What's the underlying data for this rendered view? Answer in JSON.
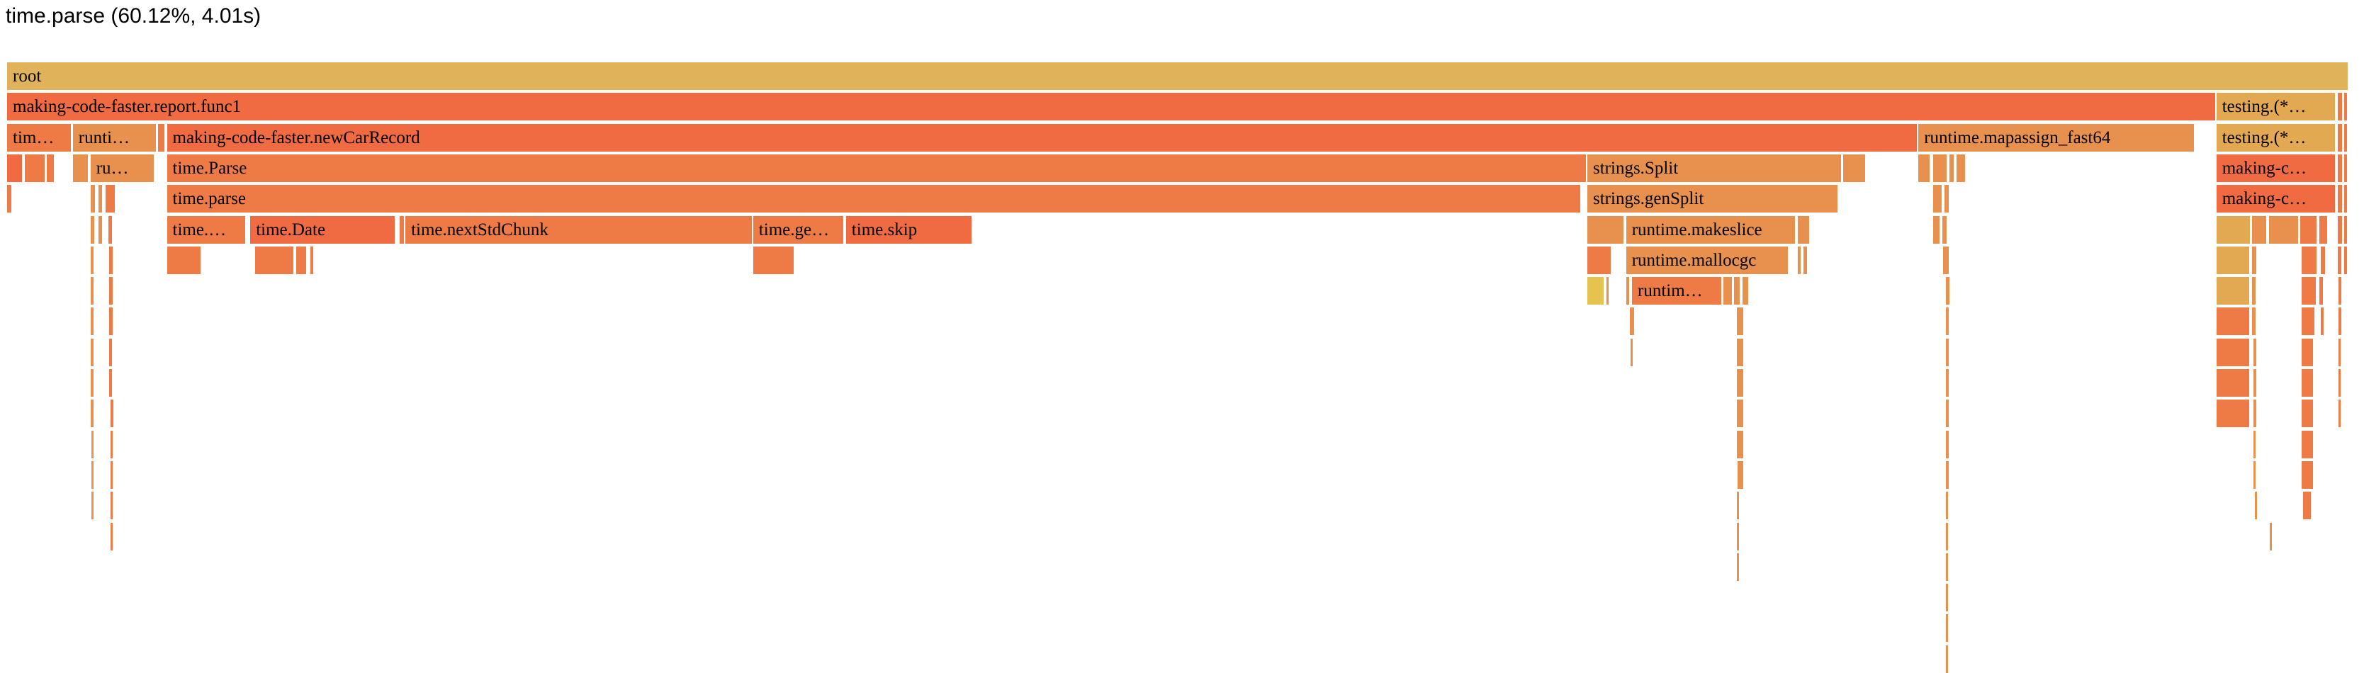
{
  "header": {
    "title": "time.parse (60.12%, 4.01s)"
  },
  "colors": {
    "red": "#f06a42",
    "orange_red": "#ee7b45",
    "orange": "#e8904d",
    "yellow_orange": "#e3a952",
    "gold": "#e0b35a",
    "yellow": "#e6c24e"
  },
  "frames": [
    {
      "row": 0,
      "start": 0.0,
      "width": 99.66,
      "label": "root",
      "color": "#e0b35a"
    },
    {
      "row": 1,
      "start": 0.0,
      "width": 94.02,
      "label": "making-code-faster.report.func1",
      "color": "#f06a42"
    },
    {
      "row": 1,
      "start": 94.02,
      "width": 5.1,
      "label": "testing.(*…",
      "color": "#e3a952"
    },
    {
      "row": 1,
      "start": 99.18,
      "width": 0.25,
      "label": "",
      "color": "#ee7b45"
    },
    {
      "row": 1,
      "start": 99.45,
      "width": 0.18,
      "label": "",
      "color": "#ee7b45"
    },
    {
      "row": 2,
      "start": 0.0,
      "width": 2.78,
      "label": "tim…",
      "color": "#ee7b45"
    },
    {
      "row": 2,
      "start": 2.8,
      "width": 3.6,
      "label": "runti…",
      "color": "#e8904d"
    },
    {
      "row": 2,
      "start": 6.42,
      "width": 0.35,
      "label": "",
      "color": "#ee7b45"
    },
    {
      "row": 2,
      "start": 6.8,
      "width": 74.54,
      "label": "making-code-faster.newCarRecord",
      "color": "#f06a42"
    },
    {
      "row": 2,
      "start": 81.34,
      "width": 11.8,
      "label": "runtime.mapassign_fast64",
      "color": "#e8904d"
    },
    {
      "row": 2,
      "start": 94.02,
      "width": 5.1,
      "label": "testing.(*…",
      "color": "#e3a952"
    },
    {
      "row": 2,
      "start": 99.18,
      "width": 0.25,
      "label": "",
      "color": "#ee7b45"
    },
    {
      "row": 2,
      "start": 99.45,
      "width": 0.18,
      "label": "",
      "color": "#ee7b45"
    },
    {
      "row": 3,
      "start": 0.0,
      "width": 0.7,
      "label": "",
      "color": "#f06a42"
    },
    {
      "row": 3,
      "start": 0.75,
      "width": 0.9,
      "label": "",
      "color": "#ee7b45"
    },
    {
      "row": 3,
      "start": 1.7,
      "width": 0.35,
      "label": "",
      "color": "#ee7b45"
    },
    {
      "row": 3,
      "start": 2.8,
      "width": 0.7,
      "label": "",
      "color": "#e8904d"
    },
    {
      "row": 3,
      "start": 3.55,
      "width": 2.75,
      "label": "ru…",
      "color": "#e8904d"
    },
    {
      "row": 3,
      "start": 6.8,
      "width": 60.45,
      "label": "time.Parse",
      "color": "#ee7b45"
    },
    {
      "row": 3,
      "start": 67.25,
      "width": 10.85,
      "label": "strings.Split",
      "color": "#e8904d"
    },
    {
      "row": 3,
      "start": 78.12,
      "width": 1.0,
      "label": "",
      "color": "#e8904d"
    },
    {
      "row": 3,
      "start": 81.34,
      "width": 0.55,
      "label": "",
      "color": "#e8904d"
    },
    {
      "row": 3,
      "start": 81.95,
      "width": 0.65,
      "label": "",
      "color": "#e8904d"
    },
    {
      "row": 3,
      "start": 82.65,
      "width": 0.25,
      "label": "",
      "color": "#e8904d"
    },
    {
      "row": 3,
      "start": 82.95,
      "width": 0.45,
      "label": "",
      "color": "#e8904d"
    },
    {
      "row": 3,
      "start": 94.02,
      "width": 5.1,
      "label": "making-c…",
      "color": "#f06a42"
    },
    {
      "row": 3,
      "start": 99.18,
      "width": 0.25,
      "label": "",
      "color": "#ee7b45"
    },
    {
      "row": 3,
      "start": 99.45,
      "width": 0.18,
      "label": "",
      "color": "#ee7b45"
    },
    {
      "row": 4,
      "start": 0.0,
      "width": 0.25,
      "label": "",
      "color": "#ee7b45"
    },
    {
      "row": 4,
      "start": 3.55,
      "width": 0.25,
      "label": "",
      "color": "#e8904d"
    },
    {
      "row": 4,
      "start": 3.9,
      "width": 0.2,
      "label": "",
      "color": "#e8904d"
    },
    {
      "row": 4,
      "start": 4.2,
      "width": 0.45,
      "label": "",
      "color": "#ee7b45"
    },
    {
      "row": 4,
      "start": 6.8,
      "width": 60.2,
      "label": "time.parse",
      "color": "#ee7b45"
    },
    {
      "row": 4,
      "start": 67.25,
      "width": 10.7,
      "label": "strings.genSplit",
      "color": "#e8904d"
    },
    {
      "row": 4,
      "start": 81.95,
      "width": 0.45,
      "label": "",
      "color": "#e8904d"
    },
    {
      "row": 4,
      "start": 82.45,
      "width": 0.25,
      "label": "",
      "color": "#e8904d"
    },
    {
      "row": 4,
      "start": 94.02,
      "width": 5.1,
      "label": "making-c…",
      "color": "#f06a42"
    },
    {
      "row": 4,
      "start": 99.18,
      "width": 0.25,
      "label": "",
      "color": "#ee7b45"
    },
    {
      "row": 4,
      "start": 99.45,
      "width": 0.18,
      "label": "",
      "color": "#ee7b45"
    },
    {
      "row": 5,
      "start": 3.55,
      "width": 0.22,
      "label": "",
      "color": "#e8904d"
    },
    {
      "row": 5,
      "start": 3.9,
      "width": 0.2,
      "label": "",
      "color": "#e8904d"
    },
    {
      "row": 5,
      "start": 4.3,
      "width": 0.22,
      "label": "",
      "color": "#ee7b45"
    },
    {
      "row": 5,
      "start": 6.8,
      "width": 3.4,
      "label": "time.…",
      "color": "#ee7b45"
    },
    {
      "row": 5,
      "start": 10.35,
      "width": 6.2,
      "label": "time.Date",
      "color": "#f06a42"
    },
    {
      "row": 5,
      "start": 16.7,
      "width": 0.25,
      "label": "",
      "color": "#ee7b45"
    },
    {
      "row": 5,
      "start": 16.95,
      "width": 14.8,
      "label": "time.nextStdChunk",
      "color": "#ee7b45"
    },
    {
      "row": 5,
      "start": 31.75,
      "width": 3.9,
      "label": "time.ge…",
      "color": "#ee7b45"
    },
    {
      "row": 5,
      "start": 35.7,
      "width": 5.4,
      "label": "time.skip",
      "color": "#f06a42"
    },
    {
      "row": 5,
      "start": 67.25,
      "width": 1.6,
      "label": "",
      "color": "#e8904d"
    },
    {
      "row": 5,
      "start": 68.9,
      "width": 7.25,
      "label": "runtime.makeslice",
      "color": "#e8904d"
    },
    {
      "row": 5,
      "start": 76.2,
      "width": 0.55,
      "label": "",
      "color": "#e8904d"
    },
    {
      "row": 5,
      "start": 81.95,
      "width": 0.35,
      "label": "",
      "color": "#e8904d"
    },
    {
      "row": 5,
      "start": 82.35,
      "width": 0.25,
      "label": "",
      "color": "#e8904d"
    },
    {
      "row": 5,
      "start": 94.02,
      "width": 1.5,
      "label": "",
      "color": "#e3a952"
    },
    {
      "row": 5,
      "start": 95.55,
      "width": 0.65,
      "label": "",
      "color": "#e8904d"
    },
    {
      "row": 5,
      "start": 96.25,
      "width": 1.3,
      "label": "",
      "color": "#e8904d"
    },
    {
      "row": 5,
      "start": 97.6,
      "width": 0.75,
      "label": "",
      "color": "#ee7b45"
    },
    {
      "row": 5,
      "start": 98.4,
      "width": 0.4,
      "label": "",
      "color": "#ee7b45"
    },
    {
      "row": 5,
      "start": 99.18,
      "width": 0.25,
      "label": "",
      "color": "#ee7b45"
    },
    {
      "row": 5,
      "start": 99.45,
      "width": 0.18,
      "label": "",
      "color": "#ee7b45"
    },
    {
      "row": 6,
      "start": 3.55,
      "width": 0.2,
      "label": "",
      "color": "#e8904d"
    },
    {
      "row": 6,
      "start": 4.35,
      "width": 0.2,
      "label": "",
      "color": "#ee7b45"
    },
    {
      "row": 6,
      "start": 6.8,
      "width": 1.5,
      "label": "",
      "color": "#ee7b45"
    },
    {
      "row": 6,
      "start": 10.55,
      "width": 1.7,
      "label": "",
      "color": "#ee7b45"
    },
    {
      "row": 6,
      "start": 12.3,
      "width": 0.5,
      "label": "",
      "color": "#ee7b45"
    },
    {
      "row": 6,
      "start": 12.9,
      "width": 0.18,
      "label": "",
      "color": "#ee7b45"
    },
    {
      "row": 6,
      "start": 31.75,
      "width": 1.8,
      "label": "",
      "color": "#ee7b45"
    },
    {
      "row": 6,
      "start": 67.25,
      "width": 1.05,
      "label": "",
      "color": "#ee7b45"
    },
    {
      "row": 6,
      "start": 68.9,
      "width": 6.95,
      "label": "runtime.mallocgc",
      "color": "#e8904d"
    },
    {
      "row": 6,
      "start": 76.2,
      "width": 0.2,
      "label": "",
      "color": "#e8904d"
    },
    {
      "row": 6,
      "start": 76.45,
      "width": 0.2,
      "label": "",
      "color": "#e8904d"
    },
    {
      "row": 6,
      "start": 82.4,
      "width": 0.3,
      "label": "",
      "color": "#e8904d"
    },
    {
      "row": 6,
      "start": 94.02,
      "width": 1.45,
      "label": "",
      "color": "#e3a952"
    },
    {
      "row": 6,
      "start": 95.55,
      "width": 0.22,
      "label": "",
      "color": "#e8904d"
    },
    {
      "row": 6,
      "start": 97.65,
      "width": 0.7,
      "label": "",
      "color": "#ee7b45"
    },
    {
      "row": 6,
      "start": 98.45,
      "width": 0.25,
      "label": "",
      "color": "#ee7b45"
    },
    {
      "row": 6,
      "start": 99.18,
      "width": 0.22,
      "label": "",
      "color": "#ee7b45"
    },
    {
      "row": 6,
      "start": 99.45,
      "width": 0.18,
      "label": "",
      "color": "#ee7b45"
    },
    {
      "row": 7,
      "start": 3.55,
      "width": 0.2,
      "label": "",
      "color": "#e8904d"
    },
    {
      "row": 7,
      "start": 4.35,
      "width": 0.2,
      "label": "",
      "color": "#ee7b45"
    },
    {
      "row": 7,
      "start": 67.25,
      "width": 0.75,
      "label": "",
      "color": "#e6c24e"
    },
    {
      "row": 7,
      "start": 68.05,
      "width": 0.15,
      "label": "",
      "color": "#e8904d"
    },
    {
      "row": 7,
      "start": 68.9,
      "width": 0.2,
      "label": "",
      "color": "#e8904d"
    },
    {
      "row": 7,
      "start": 69.15,
      "width": 3.85,
      "label": "runtim…",
      "color": "#ee7b45"
    },
    {
      "row": 7,
      "start": 73.05,
      "width": 0.4,
      "label": "",
      "color": "#e8904d"
    },
    {
      "row": 7,
      "start": 73.5,
      "width": 0.3,
      "label": "",
      "color": "#e8904d"
    },
    {
      "row": 7,
      "start": 73.85,
      "width": 0.3,
      "label": "",
      "color": "#e8904d"
    },
    {
      "row": 7,
      "start": 82.5,
      "width": 0.22,
      "label": "",
      "color": "#e8904d"
    },
    {
      "row": 7,
      "start": 94.02,
      "width": 1.45,
      "label": "",
      "color": "#e3a952"
    },
    {
      "row": 7,
      "start": 95.55,
      "width": 0.2,
      "label": "",
      "color": "#e8904d"
    },
    {
      "row": 7,
      "start": 97.65,
      "width": 0.65,
      "label": "",
      "color": "#ee7b45"
    },
    {
      "row": 7,
      "start": 98.4,
      "width": 0.22,
      "label": "",
      "color": "#ee7b45"
    },
    {
      "row": 7,
      "start": 99.2,
      "width": 0.18,
      "label": "",
      "color": "#ee7b45"
    },
    {
      "row": 8,
      "start": 3.55,
      "width": 0.2,
      "label": "",
      "color": "#e8904d"
    },
    {
      "row": 8,
      "start": 4.35,
      "width": 0.2,
      "label": "",
      "color": "#ee7b45"
    },
    {
      "row": 8,
      "start": 69.05,
      "width": 0.25,
      "label": "",
      "color": "#e8904d"
    },
    {
      "row": 8,
      "start": 73.6,
      "width": 0.35,
      "label": "",
      "color": "#e8904d"
    },
    {
      "row": 8,
      "start": 82.5,
      "width": 0.2,
      "label": "",
      "color": "#e8904d"
    },
    {
      "row": 8,
      "start": 94.02,
      "width": 1.45,
      "label": "",
      "color": "#ee7b45"
    },
    {
      "row": 8,
      "start": 95.55,
      "width": 0.2,
      "label": "",
      "color": "#e8904d"
    },
    {
      "row": 8,
      "start": 97.65,
      "width": 0.6,
      "label": "",
      "color": "#ee7b45"
    },
    {
      "row": 8,
      "start": 98.45,
      "width": 0.18,
      "label": "",
      "color": "#ee7b45"
    },
    {
      "row": 8,
      "start": 99.2,
      "width": 0.18,
      "label": "",
      "color": "#ee7b45"
    },
    {
      "row": 9,
      "start": 3.55,
      "width": 0.18,
      "label": "",
      "color": "#e8904d"
    },
    {
      "row": 9,
      "start": 4.35,
      "width": 0.18,
      "label": "",
      "color": "#ee7b45"
    },
    {
      "row": 9,
      "start": 69.1,
      "width": 0.15,
      "label": "",
      "color": "#e8904d"
    },
    {
      "row": 9,
      "start": 73.6,
      "width": 0.35,
      "label": "",
      "color": "#e8904d"
    },
    {
      "row": 9,
      "start": 82.5,
      "width": 0.2,
      "label": "",
      "color": "#e8904d"
    },
    {
      "row": 9,
      "start": 94.02,
      "width": 1.45,
      "label": "",
      "color": "#ee7b45"
    },
    {
      "row": 9,
      "start": 95.6,
      "width": 0.18,
      "label": "",
      "color": "#e8904d"
    },
    {
      "row": 9,
      "start": 97.65,
      "width": 0.55,
      "label": "",
      "color": "#ee7b45"
    },
    {
      "row": 9,
      "start": 99.2,
      "width": 0.15,
      "label": "",
      "color": "#ee7b45"
    },
    {
      "row": 10,
      "start": 3.55,
      "width": 0.18,
      "label": "",
      "color": "#e8904d"
    },
    {
      "row": 10,
      "start": 4.35,
      "width": 0.18,
      "label": "",
      "color": "#ee7b45"
    },
    {
      "row": 10,
      "start": 73.6,
      "width": 0.35,
      "label": "",
      "color": "#e8904d"
    },
    {
      "row": 10,
      "start": 82.5,
      "width": 0.2,
      "label": "",
      "color": "#e8904d"
    },
    {
      "row": 10,
      "start": 94.02,
      "width": 1.45,
      "label": "",
      "color": "#ee7b45"
    },
    {
      "row": 10,
      "start": 95.6,
      "width": 0.18,
      "label": "",
      "color": "#e8904d"
    },
    {
      "row": 10,
      "start": 97.65,
      "width": 0.55,
      "label": "",
      "color": "#ee7b45"
    },
    {
      "row": 10,
      "start": 99.2,
      "width": 0.15,
      "label": "",
      "color": "#ee7b45"
    },
    {
      "row": 11,
      "start": 3.55,
      "width": 0.18,
      "label": "",
      "color": "#e8904d"
    },
    {
      "row": 11,
      "start": 4.4,
      "width": 0.18,
      "label": "",
      "color": "#ee7b45"
    },
    {
      "row": 11,
      "start": 73.6,
      "width": 0.35,
      "label": "",
      "color": "#e8904d"
    },
    {
      "row": 11,
      "start": 82.5,
      "width": 0.18,
      "label": "",
      "color": "#e8904d"
    },
    {
      "row": 11,
      "start": 94.02,
      "width": 1.45,
      "label": "",
      "color": "#ee7b45"
    },
    {
      "row": 11,
      "start": 95.6,
      "width": 0.18,
      "label": "",
      "color": "#e8904d"
    },
    {
      "row": 11,
      "start": 97.65,
      "width": 0.55,
      "label": "",
      "color": "#ee7b45"
    },
    {
      "row": 11,
      "start": 99.2,
      "width": 0.15,
      "label": "",
      "color": "#ee7b45"
    },
    {
      "row": 12,
      "start": 3.6,
      "width": 0.15,
      "label": "",
      "color": "#e8904d"
    },
    {
      "row": 12,
      "start": 4.4,
      "width": 0.15,
      "label": "",
      "color": "#ee7b45"
    },
    {
      "row": 12,
      "start": 73.6,
      "width": 0.35,
      "label": "",
      "color": "#e8904d"
    },
    {
      "row": 12,
      "start": 82.5,
      "width": 0.18,
      "label": "",
      "color": "#e8904d"
    },
    {
      "row": 12,
      "start": 95.6,
      "width": 0.15,
      "label": "",
      "color": "#e8904d"
    },
    {
      "row": 12,
      "start": 97.65,
      "width": 0.55,
      "label": "",
      "color": "#ee7b45"
    },
    {
      "row": 13,
      "start": 3.6,
      "width": 0.15,
      "label": "",
      "color": "#e8904d"
    },
    {
      "row": 13,
      "start": 4.4,
      "width": 0.15,
      "label": "",
      "color": "#ee7b45"
    },
    {
      "row": 13,
      "start": 73.65,
      "width": 0.3,
      "label": "",
      "color": "#e8904d"
    },
    {
      "row": 13,
      "start": 82.5,
      "width": 0.18,
      "label": "",
      "color": "#e8904d"
    },
    {
      "row": 13,
      "start": 95.6,
      "width": 0.15,
      "label": "",
      "color": "#e8904d"
    },
    {
      "row": 13,
      "start": 97.65,
      "width": 0.55,
      "label": "",
      "color": "#ee7b45"
    },
    {
      "row": 14,
      "start": 3.6,
      "width": 0.15,
      "label": "",
      "color": "#e8904d"
    },
    {
      "row": 14,
      "start": 4.4,
      "width": 0.15,
      "label": "",
      "color": "#ee7b45"
    },
    {
      "row": 14,
      "start": 73.6,
      "width": 0.15,
      "label": "",
      "color": "#e8904d"
    },
    {
      "row": 14,
      "start": 82.5,
      "width": 0.15,
      "label": "",
      "color": "#e8904d"
    },
    {
      "row": 14,
      "start": 95.65,
      "width": 0.15,
      "label": "",
      "color": "#e8904d"
    },
    {
      "row": 14,
      "start": 97.7,
      "width": 0.4,
      "label": "",
      "color": "#ee7b45"
    },
    {
      "row": 15,
      "start": 4.4,
      "width": 0.15,
      "label": "",
      "color": "#ee7b45"
    },
    {
      "row": 15,
      "start": 73.6,
      "width": 0.15,
      "label": "",
      "color": "#e8904d"
    },
    {
      "row": 15,
      "start": 82.5,
      "width": 0.15,
      "label": "",
      "color": "#e8904d"
    },
    {
      "row": 15,
      "start": 96.3,
      "width": 0.15,
      "label": "",
      "color": "#e8904d"
    },
    {
      "row": 16,
      "start": 73.6,
      "width": 0.15,
      "label": "",
      "color": "#e8904d"
    },
    {
      "row": 16,
      "start": 82.5,
      "width": 0.15,
      "label": "",
      "color": "#e8904d"
    },
    {
      "row": 17,
      "start": 82.5,
      "width": 0.15,
      "label": "",
      "color": "#e8904d"
    },
    {
      "row": 18,
      "start": 82.5,
      "width": 0.15,
      "label": "",
      "color": "#e8904d"
    },
    {
      "row": 19,
      "start": 82.5,
      "width": 0.15,
      "label": "",
      "color": "#e8904d"
    }
  ]
}
